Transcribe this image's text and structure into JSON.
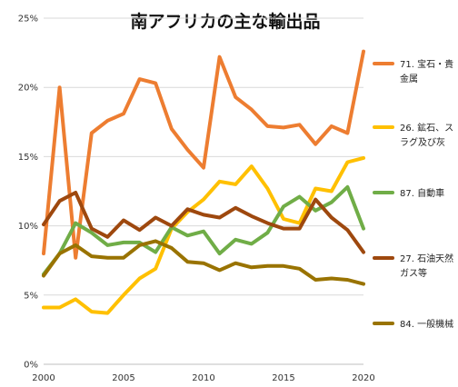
{
  "chart_data": {
    "type": "line",
    "title": "南アフリカの主な輸出品",
    "xlabel": "",
    "ylabel": "",
    "x": [
      2000,
      2001,
      2002,
      2003,
      2004,
      2005,
      2006,
      2007,
      2008,
      2009,
      2010,
      2011,
      2012,
      2013,
      2014,
      2015,
      2016,
      2017,
      2018,
      2019,
      2020
    ],
    "xlim": [
      2000,
      2020
    ],
    "ylim": [
      0,
      25
    ],
    "x_ticks": [
      2000,
      2005,
      2010,
      2015,
      2020
    ],
    "y_ticks": [
      0,
      5,
      10,
      15,
      20,
      25
    ],
    "y_tick_labels": [
      "0%",
      "5%",
      "10%",
      "15%",
      "20%",
      "25%"
    ],
    "grid": true,
    "legend_position": "right",
    "series": [
      {
        "name": "71. 宝石・貴金属",
        "legend_lines": [
          "71. 宝石・貴",
          "金属"
        ],
        "color": "#ED7D31",
        "values": [
          8.0,
          20.0,
          7.7,
          16.7,
          17.6,
          18.1,
          20.6,
          20.3,
          17.0,
          15.5,
          14.2,
          22.2,
          19.3,
          18.4,
          17.2,
          17.1,
          17.3,
          15.9,
          17.2,
          16.7,
          22.6
        ]
      },
      {
        "name": "26. 鉱石、スラグ及び灰",
        "legend_lines": [
          "26. 鉱石、ス",
          "ラグ及び灰"
        ],
        "color": "#FFC000",
        "values": [
          4.1,
          4.1,
          4.7,
          3.8,
          3.7,
          5.0,
          6.2,
          6.9,
          9.8,
          11.0,
          11.9,
          13.2,
          13.0,
          14.3,
          12.7,
          10.5,
          10.2,
          12.7,
          12.5,
          14.6,
          14.9
        ]
      },
      {
        "name": "87. 自動車",
        "legend_lines": [
          "87. 自動車"
        ],
        "color": "#70AD47",
        "values": [
          6.5,
          8.0,
          10.2,
          9.5,
          8.6,
          8.8,
          8.8,
          8.1,
          9.9,
          9.3,
          9.6,
          8.0,
          9.0,
          8.7,
          9.5,
          11.4,
          12.1,
          11.1,
          11.7,
          12.8,
          9.8
        ]
      },
      {
        "name": "27. 石油天然ガス等",
        "legend_lines": [
          "27. 石油天然",
          "ガス等"
        ],
        "color": "#9E480E",
        "values": [
          10.1,
          11.8,
          12.4,
          9.8,
          9.2,
          10.4,
          9.7,
          10.6,
          10.0,
          11.2,
          10.8,
          10.6,
          11.3,
          10.7,
          10.2,
          9.8,
          9.8,
          11.9,
          10.6,
          9.7,
          8.1
        ]
      },
      {
        "name": "84. 一般機械",
        "legend_lines": [
          "84. 一般機械"
        ],
        "color": "#997300",
        "values": [
          6.4,
          8.0,
          8.6,
          7.8,
          7.7,
          7.7,
          8.6,
          8.9,
          8.4,
          7.4,
          7.3,
          6.8,
          7.3,
          7.0,
          7.1,
          7.1,
          6.9,
          6.1,
          6.2,
          6.1,
          5.8
        ]
      }
    ]
  }
}
